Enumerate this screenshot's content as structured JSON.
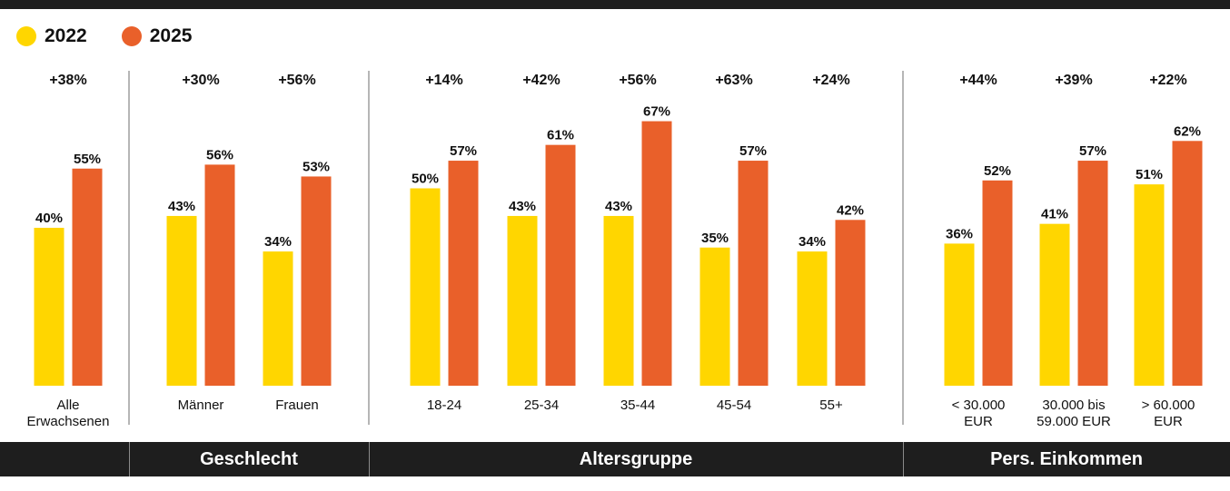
{
  "legend": [
    {
      "label": "2022",
      "color": "#FFD600"
    },
    {
      "label": "2025",
      "color": "#E9602A"
    }
  ],
  "groups": [
    {
      "label": ""
    },
    {
      "label": "Geschlecht"
    },
    {
      "label": "Altersgruppe"
    },
    {
      "label": "Pers. Einkommen"
    }
  ],
  "chart_data": {
    "type": "bar",
    "ylim": [
      0,
      67
    ],
    "grid": false,
    "legend_position": "top-left",
    "categories": [
      {
        "label": [
          "Alle",
          "Erwachsenen"
        ],
        "group": 0,
        "change": "+38%"
      },
      {
        "label": [
          "Männer"
        ],
        "group": 1,
        "change": "+30%"
      },
      {
        "label": [
          "Frauen"
        ],
        "group": 1,
        "change": "+56%"
      },
      {
        "label": [
          "18-24"
        ],
        "group": 2,
        "change": "+14%"
      },
      {
        "label": [
          "25-34"
        ],
        "group": 2,
        "change": "+42%"
      },
      {
        "label": [
          "35-44"
        ],
        "group": 2,
        "change": "+56%"
      },
      {
        "label": [
          "45-54"
        ],
        "group": 2,
        "change": "+63%"
      },
      {
        "label": [
          "55+"
        ],
        "group": 2,
        "change": "+24%"
      },
      {
        "label": [
          "< 30.000",
          "EUR"
        ],
        "group": 3,
        "change": "+44%"
      },
      {
        "label": [
          "30.000 bis",
          "59.000 EUR"
        ],
        "group": 3,
        "change": "+39%"
      },
      {
        "label": [
          "> 60.000",
          "EUR"
        ],
        "group": 3,
        "change": "+22%"
      }
    ],
    "series": [
      {
        "name": "2022",
        "color": "#FFD600",
        "values": [
          40,
          43,
          34,
          50,
          43,
          43,
          35,
          34,
          36,
          41,
          51
        ]
      },
      {
        "name": "2025",
        "color": "#E9602A",
        "values": [
          55,
          56,
          53,
          57,
          61,
          67,
          57,
          42,
          52,
          57,
          62
        ]
      }
    ]
  }
}
